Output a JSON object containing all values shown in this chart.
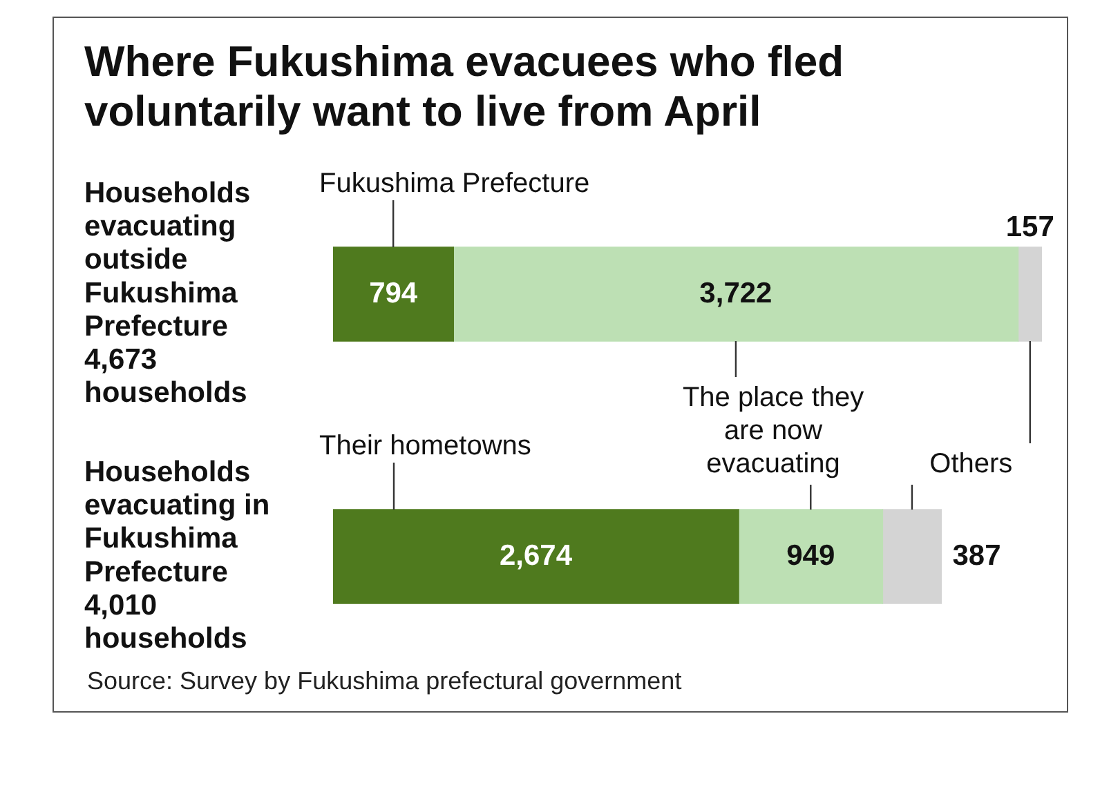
{
  "chart_data": {
    "type": "bar",
    "orientation": "horizontal",
    "stacked": true,
    "title": "Where Fukushima evacuees who fled voluntarily want to live from April",
    "categories": [
      "Households evacuating outside Fukushima Prefecture\n4,673 households",
      "Households evacuating in Fukushima Prefecture\n4,010 households"
    ],
    "series": [
      {
        "name": "Their hometowns",
        "color": "#4f7a1e",
        "values": [
          794,
          2674
        ],
        "value_labels": [
          "794",
          "2,674"
        ]
      },
      {
        "name": "The place they are now evacuating",
        "color": "#bde0b4",
        "values": [
          3722,
          949
        ],
        "value_labels": [
          "3,722",
          "949"
        ]
      },
      {
        "name": "Others",
        "color": "#d4d4d4",
        "values": [
          157,
          387
        ],
        "value_labels": [
          "157",
          "387"
        ]
      }
    ],
    "legend": false,
    "grid": false,
    "annotations": [
      "Fukushima Prefecture",
      "Source: Survey by Fukushima prefectural government"
    ]
  }
}
